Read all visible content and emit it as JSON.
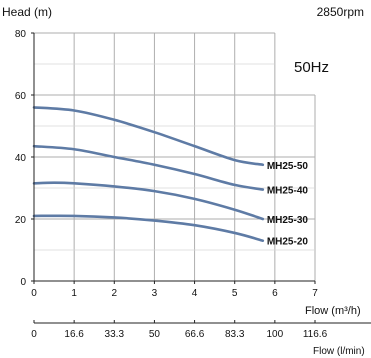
{
  "chart_data": {
    "type": "line",
    "ylabel": "Head (m)",
    "speed": "2850rpm",
    "frequency": "50Hz",
    "xlabel": "Flow (m³/h)",
    "x2label": "Flow (l/min)",
    "xlim": [
      0,
      7
    ],
    "ylim": [
      0,
      80
    ],
    "xticks": [
      0,
      1,
      2,
      3,
      4,
      5,
      6,
      7
    ],
    "yticks": [
      0,
      20,
      40,
      60,
      80
    ],
    "x2ticks": [
      "0",
      "16.6",
      "33.3",
      "50",
      "66.6",
      "83.3",
      "100",
      "116.6"
    ],
    "grid": true,
    "series": [
      {
        "name": "MH25-50",
        "x": [
          0,
          1,
          2,
          3,
          4,
          5,
          5.7
        ],
        "y": [
          56,
          55,
          52,
          48,
          43.5,
          39,
          37.5
        ]
      },
      {
        "name": "MH25-40",
        "x": [
          0,
          1,
          2,
          3,
          4,
          5,
          5.7
        ],
        "y": [
          43.5,
          42.5,
          40,
          37.5,
          34.5,
          31,
          29.5
        ]
      },
      {
        "name": "MH25-30",
        "x": [
          0,
          0.5,
          1,
          2,
          3,
          4,
          5,
          5.7
        ],
        "y": [
          31.5,
          31.7,
          31.5,
          30.5,
          29,
          26.5,
          23,
          20
        ]
      },
      {
        "name": "MH25-20",
        "x": [
          0,
          1,
          2,
          3,
          4,
          5,
          5.7
        ],
        "y": [
          21,
          21,
          20.5,
          19.5,
          18,
          15.5,
          13
        ]
      }
    ],
    "line_color": "#5e7ba5",
    "grid_color": "#aeaeae"
  }
}
